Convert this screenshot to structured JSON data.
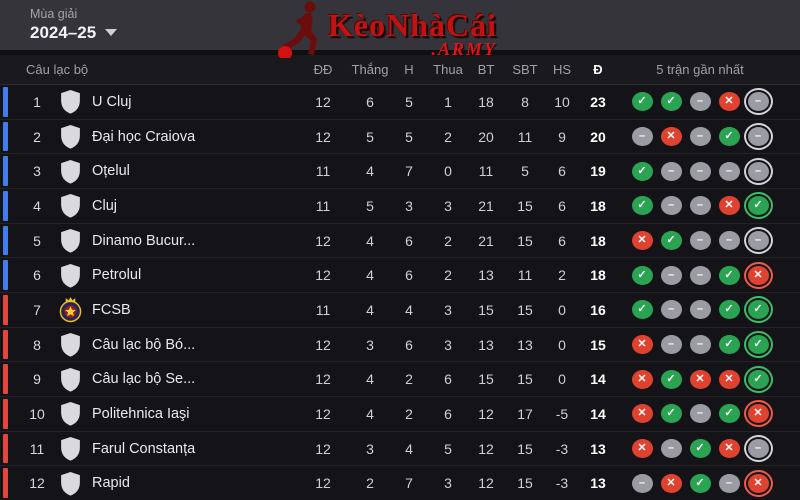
{
  "season": {
    "label": "Mùa giải",
    "value": "2024–25"
  },
  "logo": {
    "title": "KèoNhàCái",
    "suffix": ".ARMY"
  },
  "table": {
    "headers": {
      "club": "Câu lạc bộ",
      "played": "ĐĐ",
      "won": "Thắng",
      "draw": "H",
      "lost": "Thua",
      "gf": "BT",
      "ga": "SBT",
      "gd": "HS",
      "pts": "Đ",
      "form": "5 trận gần nhất"
    },
    "rows": [
      {
        "pos": 1,
        "team": "U Cluj",
        "badge": "shield",
        "zone": "blue",
        "played": 12,
        "won": 6,
        "draw": 5,
        "lost": 1,
        "gf": 18,
        "ga": 8,
        "gd": 10,
        "pts": 23,
        "form": [
          "W",
          "W",
          "D",
          "L",
          "D"
        ]
      },
      {
        "pos": 2,
        "team": "Đại học Craiova",
        "badge": "shield",
        "zone": "blue",
        "played": 12,
        "won": 5,
        "draw": 5,
        "lost": 2,
        "gf": 20,
        "ga": 11,
        "gd": 9,
        "pts": 20,
        "form": [
          "D",
          "L",
          "D",
          "W",
          "D"
        ]
      },
      {
        "pos": 3,
        "team": "Oțelul",
        "badge": "shield",
        "zone": "blue",
        "played": 11,
        "won": 4,
        "draw": 7,
        "lost": 0,
        "gf": 11,
        "ga": 5,
        "gd": 6,
        "pts": 19,
        "form": [
          "W",
          "D",
          "D",
          "D",
          "D"
        ]
      },
      {
        "pos": 4,
        "team": "Cluj",
        "badge": "shield",
        "zone": "blue",
        "played": 11,
        "won": 5,
        "draw": 3,
        "lost": 3,
        "gf": 21,
        "ga": 15,
        "gd": 6,
        "pts": 18,
        "form": [
          "W",
          "D",
          "D",
          "L",
          "W"
        ]
      },
      {
        "pos": 5,
        "team": "Dinamo Bucur...",
        "badge": "shield",
        "zone": "blue",
        "played": 12,
        "won": 4,
        "draw": 6,
        "lost": 2,
        "gf": 21,
        "ga": 15,
        "gd": 6,
        "pts": 18,
        "form": [
          "L",
          "W",
          "D",
          "D",
          "D"
        ]
      },
      {
        "pos": 6,
        "team": "Petrolul",
        "badge": "shield",
        "zone": "blue",
        "played": 12,
        "won": 4,
        "draw": 6,
        "lost": 2,
        "gf": 13,
        "ga": 11,
        "gd": 2,
        "pts": 18,
        "form": [
          "W",
          "D",
          "D",
          "W",
          "L"
        ]
      },
      {
        "pos": 7,
        "team": "FCSB",
        "badge": "fcsb",
        "zone": "red",
        "played": 11,
        "won": 4,
        "draw": 4,
        "lost": 3,
        "gf": 15,
        "ga": 15,
        "gd": 0,
        "pts": 16,
        "form": [
          "W",
          "D",
          "D",
          "W",
          "W"
        ]
      },
      {
        "pos": 8,
        "team": "Câu lạc bộ Bó...",
        "badge": "shield",
        "zone": "red",
        "played": 12,
        "won": 3,
        "draw": 6,
        "lost": 3,
        "gf": 13,
        "ga": 13,
        "gd": 0,
        "pts": 15,
        "form": [
          "L",
          "D",
          "D",
          "W",
          "W"
        ]
      },
      {
        "pos": 9,
        "team": "Câu lạc bộ Se...",
        "badge": "shield",
        "zone": "red",
        "played": 12,
        "won": 4,
        "draw": 2,
        "lost": 6,
        "gf": 15,
        "ga": 15,
        "gd": 0,
        "pts": 14,
        "form": [
          "L",
          "W",
          "L",
          "L",
          "W"
        ]
      },
      {
        "pos": 10,
        "team": "Politehnica Iaşi",
        "badge": "shield",
        "zone": "red",
        "played": 12,
        "won": 4,
        "draw": 2,
        "lost": 6,
        "gf": 12,
        "ga": 17,
        "gd": -5,
        "pts": 14,
        "form": [
          "L",
          "W",
          "D",
          "W",
          "L"
        ]
      },
      {
        "pos": 11,
        "team": "Farul Constanța",
        "badge": "shield",
        "zone": "red",
        "played": 12,
        "won": 3,
        "draw": 4,
        "lost": 5,
        "gf": 12,
        "ga": 15,
        "gd": -3,
        "pts": 13,
        "form": [
          "L",
          "D",
          "W",
          "L",
          "D"
        ]
      },
      {
        "pos": 12,
        "team": "Rapid",
        "badge": "shield",
        "zone": "red",
        "played": 12,
        "won": 2,
        "draw": 7,
        "lost": 3,
        "gf": 12,
        "ga": 15,
        "gd": -3,
        "pts": 13,
        "form": [
          "D",
          "L",
          "W",
          "D",
          "L"
        ]
      }
    ]
  },
  "colors": {
    "zone_blue": "#3f7df5",
    "zone_red": "#e8443a",
    "win": "#2aa452",
    "loss": "#df4330",
    "draw": "#9b9ba3",
    "logo_red": "#c31212",
    "topbar_bg": "#34343a",
    "table_bg": "#141418"
  }
}
